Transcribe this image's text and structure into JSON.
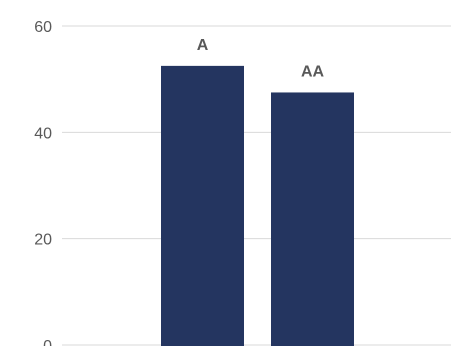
{
  "chart_data": {
    "type": "bar",
    "categories": [
      "A",
      "AA"
    ],
    "values": [
      52.5,
      47.5
    ],
    "data_labels": [
      "A",
      "AA"
    ],
    "ylim": [
      0,
      60
    ],
    "y_ticks": [
      0,
      20,
      40,
      60
    ],
    "grid": true,
    "bar_color": "#243560",
    "title": "",
    "xlabel": "",
    "ylabel": ""
  }
}
